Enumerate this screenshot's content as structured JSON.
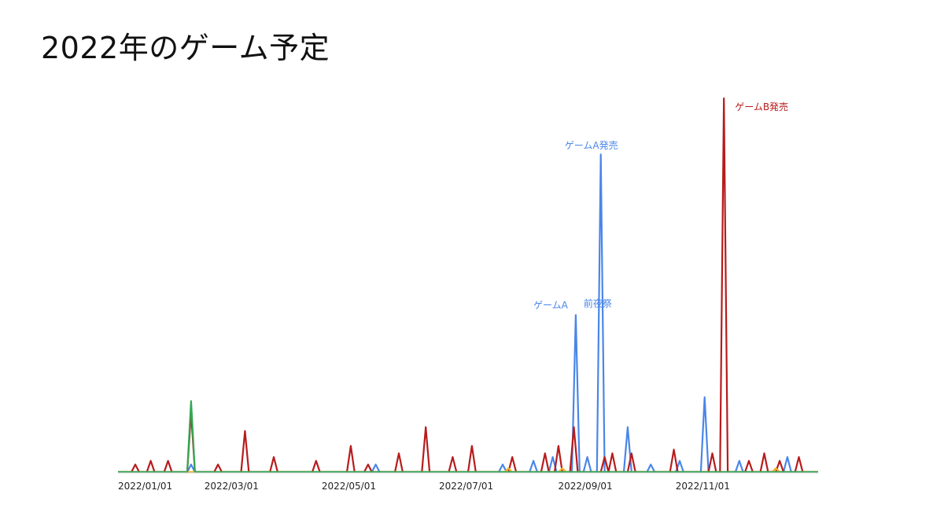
{
  "slide": {
    "title": "2022年のゲーム予定"
  },
  "chart_data": {
    "type": "line",
    "title": "",
    "xlabel": "",
    "ylabel": "",
    "x_range": [
      "2022-01-01",
      "2022-12-31"
    ],
    "ylim": [
      0,
      100
    ],
    "grid": false,
    "legend": "none",
    "x_ticks": [
      "2022/01/01",
      "2022/03/01",
      "2022/05/01",
      "2022/07/01",
      "2022/09/01",
      "2022/11/01"
    ],
    "colors": {
      "blue": "#4a86e8",
      "red": "#b71c1c",
      "orange": "#f6b026",
      "green": "#34a853"
    },
    "series": [
      {
        "color": "blue",
        "points": [
          [
            "2022-02-08",
            2
          ],
          [
            "2022-05-15",
            2
          ],
          [
            "2022-07-20",
            2
          ],
          [
            "2022-08-05",
            3
          ],
          [
            "2022-08-15",
            4
          ],
          [
            "2022-08-27",
            42
          ],
          [
            "2022-09-02",
            4
          ],
          [
            "2022-09-09",
            85
          ],
          [
            "2022-09-23",
            12
          ],
          [
            "2022-10-05",
            2
          ],
          [
            "2022-10-20",
            3
          ],
          [
            "2022-11-02",
            20
          ],
          [
            "2022-11-20",
            3
          ],
          [
            "2022-12-15",
            4
          ]
        ]
      },
      {
        "color": "red",
        "points": [
          [
            "2022-01-10",
            2
          ],
          [
            "2022-01-18",
            3
          ],
          [
            "2022-01-27",
            3
          ],
          [
            "2022-02-08",
            16
          ],
          [
            "2022-02-22",
            2
          ],
          [
            "2022-03-08",
            11
          ],
          [
            "2022-03-23",
            4
          ],
          [
            "2022-04-14",
            3
          ],
          [
            "2022-05-02",
            7
          ],
          [
            "2022-05-11",
            2
          ],
          [
            "2022-05-27",
            5
          ],
          [
            "2022-06-10",
            12
          ],
          [
            "2022-06-24",
            4
          ],
          [
            "2022-07-04",
            7
          ],
          [
            "2022-07-25",
            4
          ],
          [
            "2022-08-11",
            5
          ],
          [
            "2022-08-18",
            7
          ],
          [
            "2022-08-26",
            12
          ],
          [
            "2022-09-11",
            4
          ],
          [
            "2022-09-15",
            5
          ],
          [
            "2022-09-25",
            5
          ],
          [
            "2022-10-17",
            6
          ],
          [
            "2022-11-06",
            5
          ],
          [
            "2022-11-12",
            100
          ],
          [
            "2022-11-25",
            3
          ],
          [
            "2022-12-03",
            5
          ],
          [
            "2022-12-11",
            3
          ],
          [
            "2022-12-21",
            4
          ]
        ]
      },
      {
        "color": "orange",
        "points": [
          [
            "2022-07-23",
            1
          ],
          [
            "2022-08-20",
            1
          ],
          [
            "2022-12-09",
            1
          ]
        ]
      },
      {
        "color": "green",
        "points": [
          [
            "2022-02-08",
            19
          ]
        ]
      }
    ],
    "annotations": [
      {
        "text": "ゲームB発売",
        "x": "2022-11-12",
        "color": "red"
      },
      {
        "text": "ゲームA発売",
        "x": "2022-09-09",
        "color": "blue"
      },
      {
        "text": "ゲームA",
        "x": "2022-08-27",
        "color": "blue"
      },
      {
        "text": "前夜祭",
        "x": "2022-08-27",
        "color": "blue"
      }
    ]
  }
}
